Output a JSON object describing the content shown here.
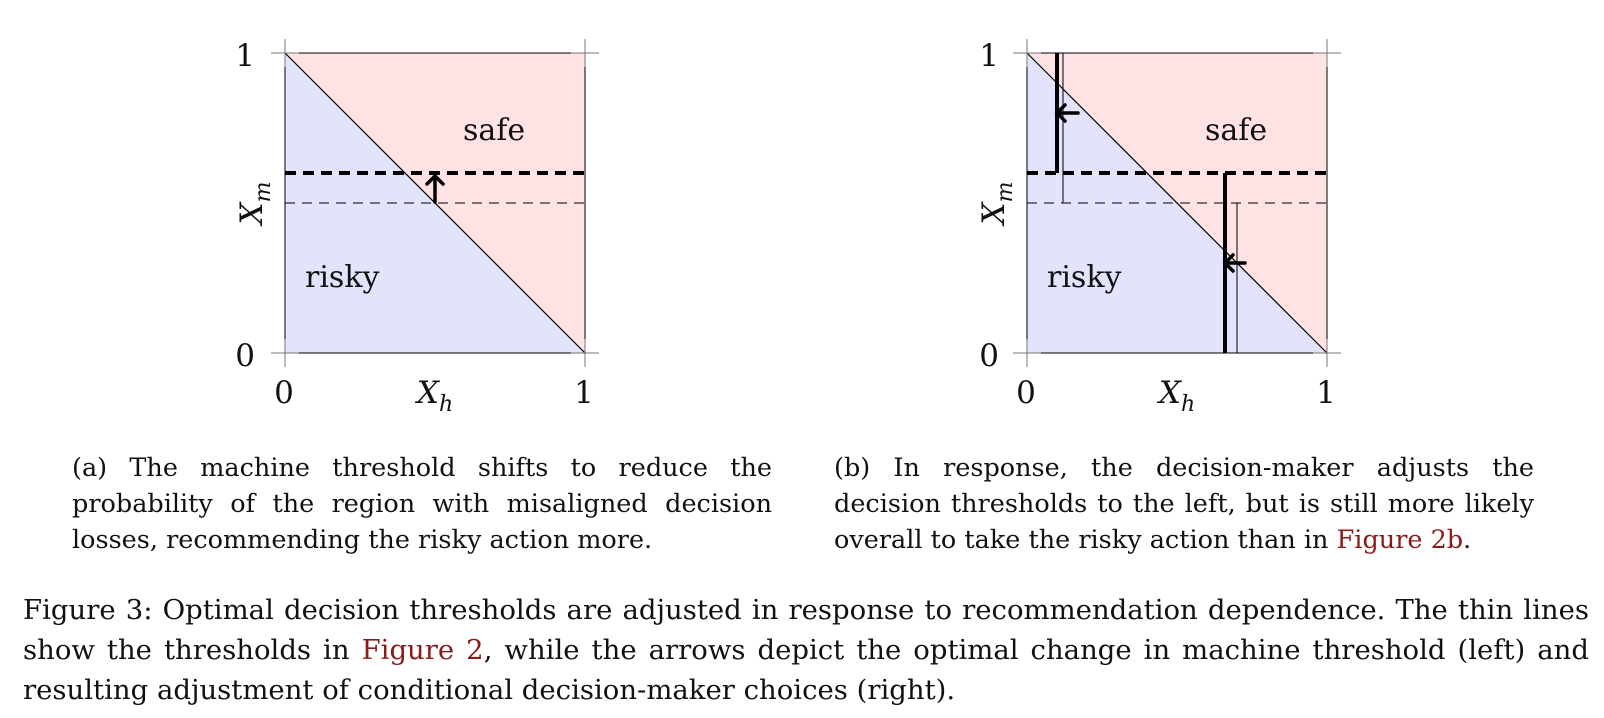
{
  "panels": [
    {
      "id": "a",
      "tick_labels": {
        "x0": "0",
        "x1": "1",
        "y0": "0",
        "y1": "1"
      },
      "xlabel": "X_h",
      "ylabel": "X_m",
      "region_labels": {
        "safe": "safe",
        "risky": "risky"
      },
      "colors": {
        "safe": "#ffe2e4",
        "risky": "#e2e3fc"
      },
      "thresholds": {
        "machine_old": 0.5,
        "machine_new": 0.6
      },
      "arrows": [
        {
          "direction": "up"
        }
      ],
      "caption": "(a) The machine threshold shifts to reduce the probability of the region with misaligned decision losses, recommending the risky action more."
    },
    {
      "id": "b",
      "tick_labels": {
        "x0": "0",
        "x1": "1",
        "y0": "0",
        "y1": "1"
      },
      "xlabel": "X_h",
      "ylabel": "X_m",
      "region_labels": {
        "safe": "safe",
        "risky": "risky"
      },
      "colors": {
        "safe": "#ffe2e4",
        "risky": "#e2e3fc"
      },
      "thresholds": {
        "machine_old": 0.5,
        "machine_new": 0.6,
        "upper_old": 0.12,
        "upper_new": 0.1,
        "lower_old": 0.7,
        "lower_new": 0.66
      },
      "arrows": [
        {
          "direction": "left"
        },
        {
          "direction": "left"
        }
      ],
      "caption_before": "(b) In response, the decision-maker adjusts the decision thresholds to the left, but is still more likely overall to take the risky action than in ",
      "caption_ref": "Figure 2b",
      "caption_after": "."
    }
  ],
  "figure_caption": {
    "part1": "Figure 3: Optimal decision thresholds are adjusted in response to recommendation dependence. The thin lines show the thresholds in ",
    "ref": "Figure 2",
    "part2": ", while the arrows depict the optimal change in machine threshold (left) and resulting adjustment of conditional decision-maker choices (right)."
  }
}
